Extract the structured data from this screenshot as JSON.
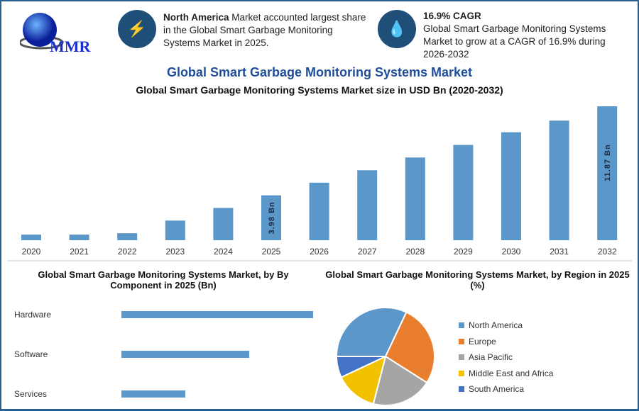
{
  "header": {
    "logo_text": "MMR",
    "info1": {
      "icon": "lightning-icon",
      "bold": "North America",
      "text": " Market accounted largest share in the Global Smart Garbage Monitoring Systems Market in 2025."
    },
    "info2": {
      "icon": "drop-icon",
      "bold": "16.9% CAGR",
      "text": "Global Smart Garbage Monitoring Systems Market to grow at a CAGR of 16.9% during 2026-2032"
    }
  },
  "title": "Global Smart Garbage Monitoring Systems Market",
  "colors": {
    "bar": "#5b97c9",
    "title": "#1f4e9a",
    "accent": "#1f4e79"
  },
  "chart_data": [
    {
      "type": "bar",
      "title": "Global Smart Garbage Monitoring Systems Market size in USD Bn (2020-2032)",
      "categories": [
        "2020",
        "2021",
        "2022",
        "2023",
        "2024",
        "2025",
        "2026",
        "2027",
        "2028",
        "2029",
        "2030",
        "2031",
        "2032"
      ],
      "values": [
        0.5,
        0.5,
        0.62,
        1.74,
        2.86,
        3.98,
        5.1,
        6.2,
        7.33,
        8.45,
        9.57,
        10.6,
        11.87
      ],
      "data_labels": {
        "2025": "3.98 Bn",
        "2032": "11.87 Bn"
      }
    },
    {
      "type": "bar",
      "orientation": "horizontal",
      "title": "Global Smart Garbage Monitoring Systems Market, by By Component in 2025 (Bn)",
      "categories": [
        "Hardware",
        "Software",
        "Services"
      ],
      "values": [
        1.99,
        1.33,
        0.66
      ]
    },
    {
      "type": "pie",
      "title": "Global Smart Garbage Monitoring Systems Market, by Region in 2025 (%)",
      "legend_position": "right",
      "categories": [
        "North America",
        "Europe",
        "Asia Pacific",
        "Middle East and Africa",
        "South America"
      ],
      "values": [
        32,
        27,
        20,
        14,
        7
      ],
      "colors": [
        "#5b97c9",
        "#e97e2f",
        "#a5a5a5",
        "#f2c200",
        "#4472c4"
      ]
    }
  ]
}
